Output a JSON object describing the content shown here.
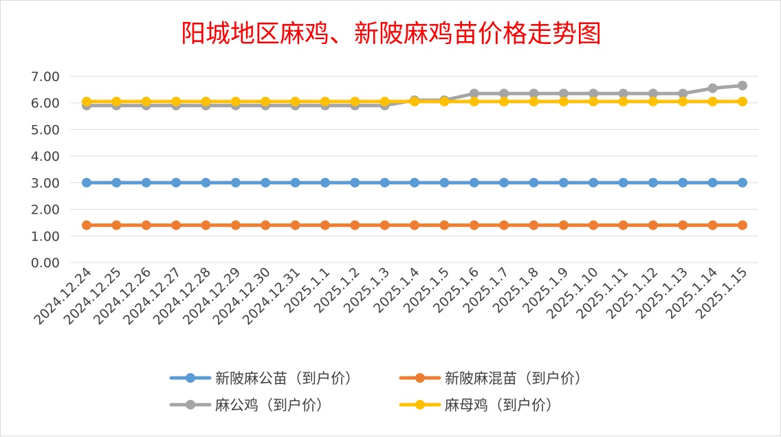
{
  "chart_data": {
    "type": "line",
    "title": "阳城地区麻鸡、新陂麻鸡苗价格走势图",
    "xlabel": "",
    "ylabel": "",
    "ylim": [
      0,
      7
    ],
    "y_ticks": [
      "0.00",
      "1.00",
      "2.00",
      "3.00",
      "4.00",
      "5.00",
      "6.00",
      "7.00"
    ],
    "grid": true,
    "legend_position": "bottom",
    "categories": [
      "2024.12.24",
      "2024.12.25",
      "2024.12.26",
      "2024.12.27",
      "2024.12.28",
      "2024.12.29",
      "2024.12.30",
      "2024.12.31",
      "2025.1.1",
      "2025.1.2",
      "2025.1.3",
      "2025.1.4",
      "2025.1.5",
      "2025.1.6",
      "2025.1.7",
      "2025.1.8",
      "2025.1.9",
      "2025.1.10",
      "2025.1.11",
      "2025.1.12",
      "2025.1.13",
      "2025.1.14",
      "2025.1.15"
    ],
    "series": [
      {
        "name": "新陂麻公苗（到户价）",
        "color": "#5b9bd5",
        "values": [
          3,
          3,
          3,
          3,
          3,
          3,
          3,
          3,
          3,
          3,
          3,
          3,
          3,
          3,
          3,
          3,
          3,
          3,
          3,
          3,
          3,
          3,
          3
        ]
      },
      {
        "name": "新陂麻混苗（到户价）",
        "color": "#ed7d31",
        "values": [
          1.4,
          1.4,
          1.4,
          1.4,
          1.4,
          1.4,
          1.4,
          1.4,
          1.4,
          1.4,
          1.4,
          1.4,
          1.4,
          1.4,
          1.4,
          1.4,
          1.4,
          1.4,
          1.4,
          1.4,
          1.4,
          1.4,
          1.4
        ]
      },
      {
        "name": "麻公鸡（到户价）",
        "color": "#a5a5a5",
        "values": [
          5.9,
          5.9,
          5.9,
          5.9,
          5.9,
          5.9,
          5.9,
          5.9,
          5.9,
          5.9,
          5.9,
          6.1,
          6.1,
          6.35,
          6.35,
          6.35,
          6.35,
          6.35,
          6.35,
          6.35,
          6.35,
          6.55,
          6.65
        ]
      },
      {
        "name": "麻母鸡（到户价）",
        "color": "#ffc000",
        "values": [
          6.05,
          6.05,
          6.05,
          6.05,
          6.05,
          6.05,
          6.05,
          6.05,
          6.05,
          6.05,
          6.05,
          6.05,
          6.05,
          6.05,
          6.05,
          6.05,
          6.05,
          6.05,
          6.05,
          6.05,
          6.05,
          6.05,
          6.05
        ]
      }
    ]
  }
}
